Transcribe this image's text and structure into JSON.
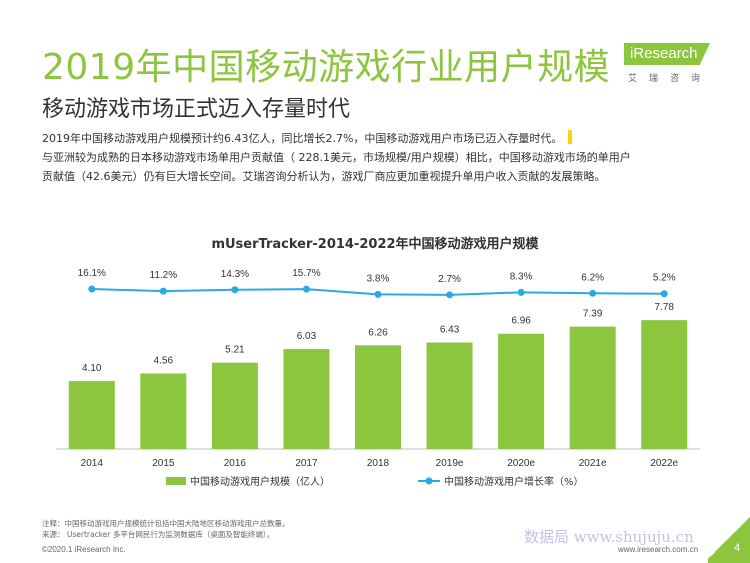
{
  "header": {
    "title": "2019年中国移动游戏行业用户规模",
    "subtitle": "移动游戏市场正式迈入存量时代"
  },
  "logo": {
    "main": "iResearch",
    "sub": "艾瑞咨询"
  },
  "body": {
    "line1": "2019年中国移动游戏用户规模预计约6.43亿人，同比增长2.7%，中国移动游戏用户市场已迈入存量时代。",
    "line2": "与亚洲较为成熟的日本移动游戏市场单用户贡献值（  228.1美元，市场规模/用户规模）相比，中国移动游戏市场的单用户",
    "line3": "贡献值（42.6美元）仍有巨大增长空间。艾瑞咨询分析认为，游戏厂商应更加重视提升单用户收入贡献的发展策略。"
  },
  "chart_data": {
    "type": "bar",
    "title": "mUserTracker-2014-2022年中国移动游戏用户规模",
    "categories": [
      "2014",
      "2015",
      "2016",
      "2017",
      "2018",
      "2019e",
      "2020e",
      "2021e",
      "2022e"
    ],
    "series": [
      {
        "name": "中国移动游戏用户规模（亿人）",
        "type": "bar",
        "values": [
          4.1,
          4.56,
          5.21,
          6.03,
          6.26,
          6.43,
          6.96,
          7.39,
          7.78
        ],
        "labels": [
          "4.10",
          "4.56",
          "5.21",
          "6.03",
          "6.26",
          "6.43",
          "6.96",
          "7.39",
          "7.78"
        ],
        "color": "#8cc63f"
      },
      {
        "name": "中国移动游戏用户增长率（%）",
        "type": "line",
        "values": [
          16.1,
          11.2,
          14.3,
          15.7,
          3.8,
          2.7,
          8.3,
          6.2,
          5.2
        ],
        "labels": [
          "16.1%",
          "11.2%",
          "14.3%",
          "15.7%",
          "3.8%",
          "2.7%",
          "8.3%",
          "6.2%",
          "5.2%"
        ],
        "color": "#29abe2"
      }
    ],
    "ylim_bar": [
      0,
      9.6
    ],
    "grid": false,
    "legend": "bottom"
  },
  "footer": {
    "note": "注释：中国移动游戏用户规模统计包括中国大陆地区移动游戏用户总数量。",
    "source": "来源：  Usertracker 多平台网民行为监测数据库（桌面及智能终端）。",
    "copyright": "©2020.1 iResearch Inc.",
    "website": "www.iresearch.com.cn",
    "page": "4",
    "watermark": "数据局  www.shujuju.cn"
  },
  "colors": {
    "accent": "#8cc63f",
    "line": "#29abe2",
    "highlight": "#ffd400"
  }
}
